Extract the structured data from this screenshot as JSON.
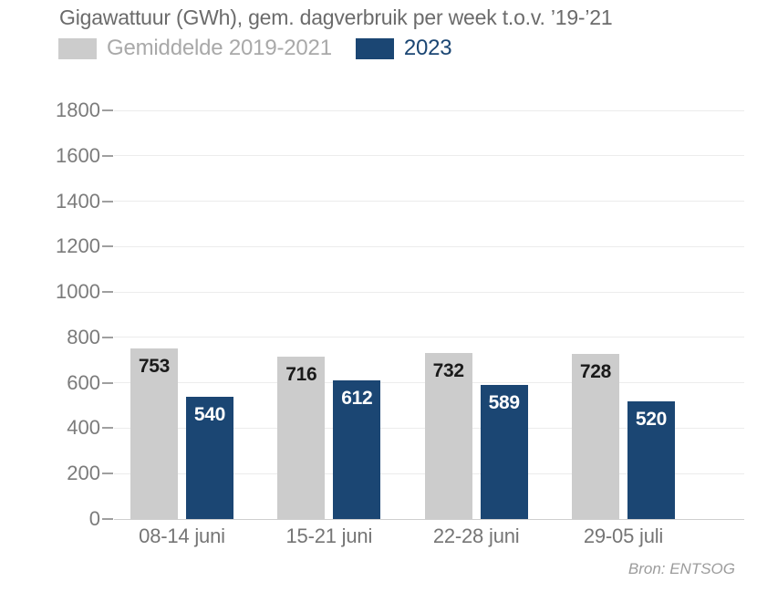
{
  "chart_data": {
    "type": "bar",
    "title": "Gigawattuur (GWh), gem. dagverbruik per week t.o.v. ’19-’21",
    "categories": [
      "08-14 juni",
      "15-21 juni",
      "22-28 juni",
      "29-05 juli"
    ],
    "series": [
      {
        "name": "Gemiddelde 2019-2021",
        "color": "#cccccc",
        "value_label_color": "#1a1a1a",
        "values": [
          753,
          716,
          732,
          728
        ]
      },
      {
        "name": "2023",
        "color": "#1b4673",
        "value_label_color": "#ffffff",
        "values": [
          540,
          612,
          589,
          520
        ]
      }
    ],
    "ylim": [
      0,
      1800
    ],
    "ytick_step": 200,
    "grid": true,
    "legend_position": "top"
  },
  "source": "Bron: ENTSOG"
}
